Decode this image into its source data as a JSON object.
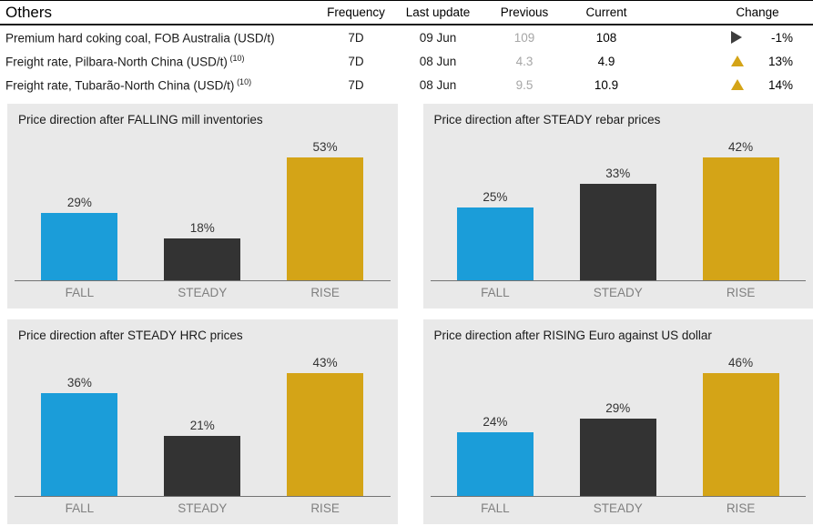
{
  "table": {
    "title": "Others",
    "headers": {
      "frequency": "Frequency",
      "last_update": "Last update",
      "previous": "Previous",
      "current": "Current",
      "change": "Change"
    },
    "rows": [
      {
        "name": "Premium hard coking coal, FOB Australia (USD/t)",
        "sup": "",
        "frequency": "7D",
        "last_update": "09 Jun",
        "previous": "109",
        "current": "108",
        "direction": "right",
        "change": "-1%"
      },
      {
        "name": "Freight rate, Pilbara-North China (USD/t)",
        "sup": "(10)",
        "frequency": "7D",
        "last_update": "08 Jun",
        "previous": "4.3",
        "current": "4.9",
        "direction": "up",
        "change": "13%"
      },
      {
        "name": "Freight rate, Tubarão-North China (USD/t)",
        "sup": "(10)",
        "frequency": "7D",
        "last_update": "08 Jun",
        "previous": "9.5",
        "current": "10.9",
        "direction": "up",
        "change": "14%"
      }
    ]
  },
  "colors": {
    "fall": "#1b9dd9",
    "steady": "#333333",
    "rise": "#d4a417",
    "panel_bg": "#e9e9e9",
    "up_arrow": "#d4a417",
    "right_arrow": "#3d3d3d"
  },
  "chart_data": [
    {
      "type": "bar",
      "title": "Price direction after FALLING mill inventories",
      "categories": [
        "FALL",
        "STEADY",
        "RISE"
      ],
      "values": [
        29,
        18,
        53
      ],
      "value_labels": [
        "29%",
        "18%",
        "53%"
      ],
      "unit": "%",
      "legend": "none",
      "grid": "off"
    },
    {
      "type": "bar",
      "title": "Price direction after STEADY rebar prices",
      "categories": [
        "FALL",
        "STEADY",
        "RISE"
      ],
      "values": [
        25,
        33,
        42
      ],
      "value_labels": [
        "25%",
        "33%",
        "42%"
      ],
      "unit": "%",
      "legend": "none",
      "grid": "off"
    },
    {
      "type": "bar",
      "title": "Price direction after STEADY HRC prices",
      "categories": [
        "FALL",
        "STEADY",
        "RISE"
      ],
      "values": [
        36,
        21,
        43
      ],
      "value_labels": [
        "36%",
        "21%",
        "43%"
      ],
      "unit": "%",
      "legend": "none",
      "grid": "off"
    },
    {
      "type": "bar",
      "title": "Price direction after RISING Euro against US dollar",
      "categories": [
        "FALL",
        "STEADY",
        "RISE"
      ],
      "values": [
        24,
        29,
        46
      ],
      "value_labels": [
        "24%",
        "29%",
        "46%"
      ],
      "unit": "%",
      "legend": "none",
      "grid": "off"
    }
  ]
}
